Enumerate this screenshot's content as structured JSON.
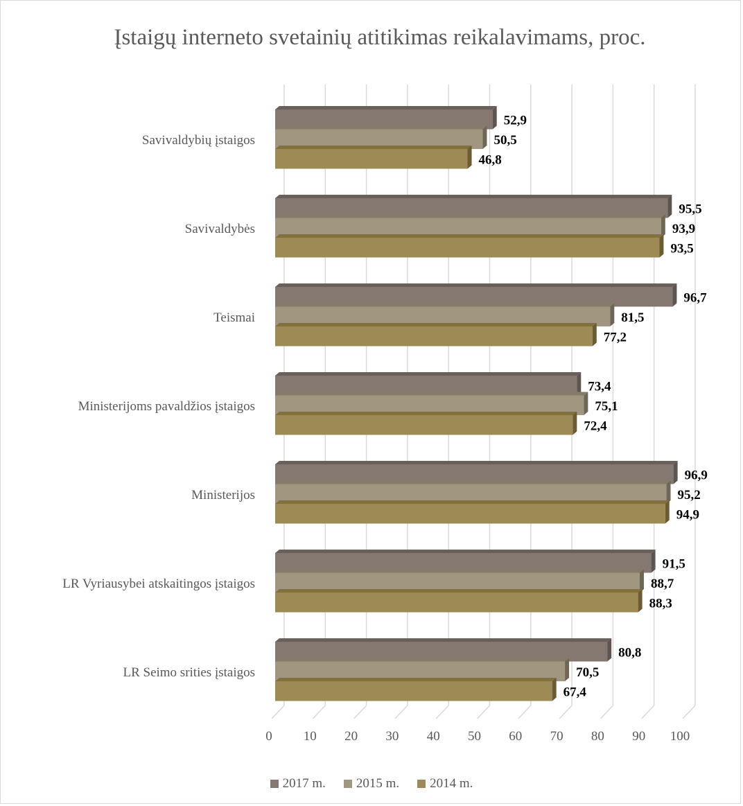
{
  "chart_data": {
    "type": "bar",
    "orientation": "horizontal",
    "title": "Įstaigų interneto svetainių atitikimas reikalavimams, proc.",
    "categories": [
      "Savivaldybių įstaigos",
      "Savivaldybės",
      "Teismai",
      "Ministerijoms pavaldžios įstaigos",
      "Ministerijos",
      "LR Vyriausybei atskaitingos įstaigos",
      "LR Seimo srities įstaigos"
    ],
    "series": [
      {
        "name": "2017 m.",
        "color": "#847870",
        "side": "#5e5450",
        "top": "#6b6059",
        "values": [
          52.9,
          95.5,
          96.7,
          73.4,
          96.9,
          91.5,
          80.8
        ],
        "labels": [
          "52,9",
          "95,5",
          "96,7",
          "73,4",
          "96,9",
          "91,5",
          "80,8"
        ]
      },
      {
        "name": "2015 m.",
        "color": "#a19781",
        "side": "#6f6756",
        "top": "#857c68",
        "values": [
          50.5,
          93.9,
          81.5,
          75.1,
          95.2,
          88.7,
          70.5
        ],
        "labels": [
          "50,5",
          "93,9",
          "81,5",
          "75,1",
          "95,2",
          "88,7",
          "70,5"
        ]
      },
      {
        "name": "2014 m.",
        "color": "#9e8a54",
        "side": "#6b5c33",
        "top": "#82703f",
        "values": [
          46.8,
          93.5,
          77.2,
          72.4,
          94.9,
          88.3,
          67.4
        ],
        "labels": [
          "46,8",
          "93,5",
          "77,2",
          "72,4",
          "94,9",
          "88,3",
          "67,4"
        ]
      }
    ],
    "xlim": [
      0,
      100
    ],
    "xticks": [
      "0",
      "10",
      "20",
      "30",
      "40",
      "50",
      "60",
      "70",
      "80",
      "90",
      "100"
    ],
    "grid": true,
    "legend_position": "bottom",
    "style": "3d-clustered-bar"
  }
}
